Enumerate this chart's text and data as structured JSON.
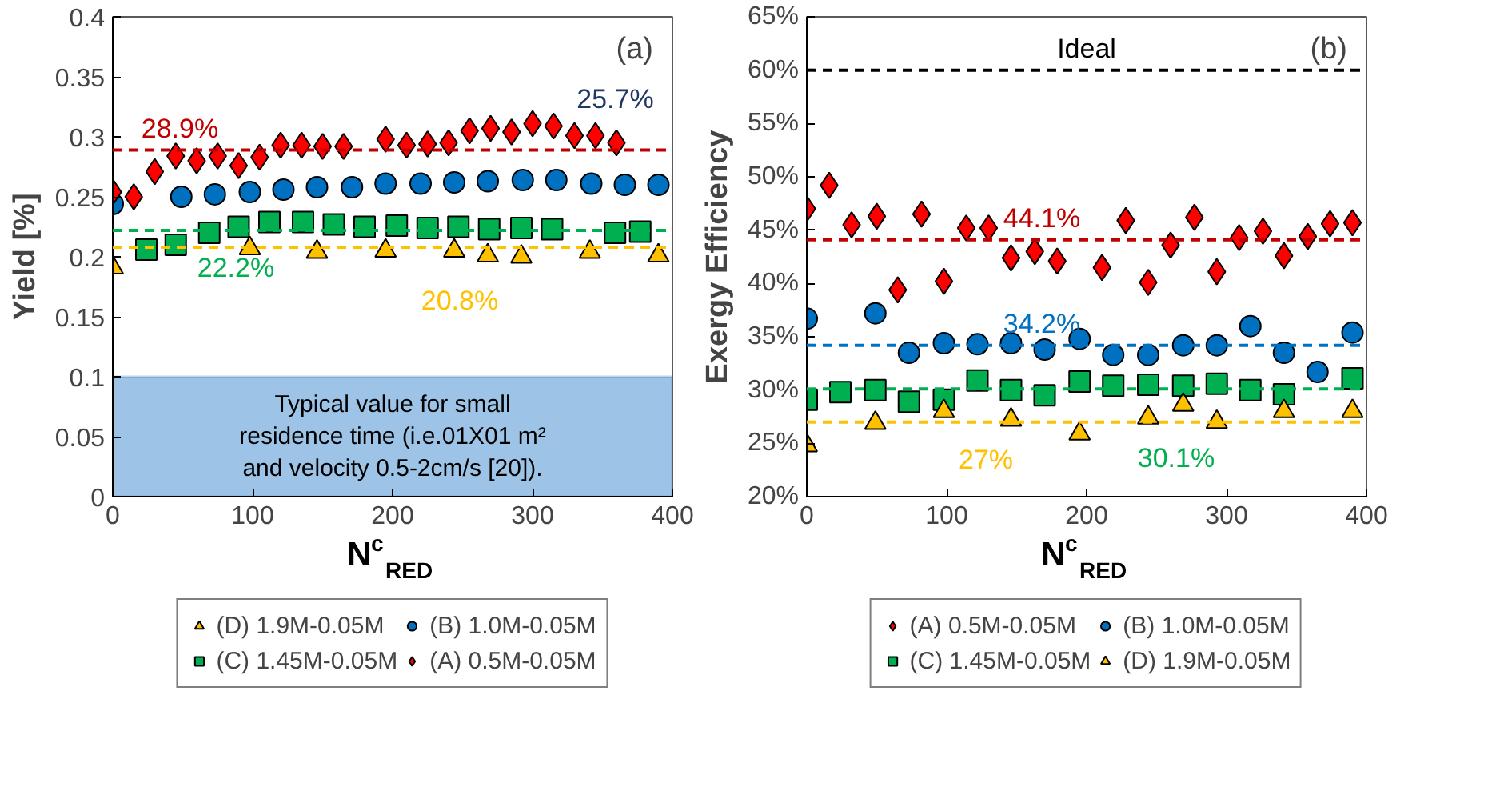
{
  "chart_data": [
    {
      "type": "scatter",
      "ylabel": "Yield [%]",
      "xlabel": "N$^{c}$$_{RED}$",
      "xlim": [
        0,
        400
      ],
      "ylim": [
        0,
        0.4
      ],
      "xticks": [
        0,
        100,
        200,
        300,
        400
      ],
      "yticks": [
        0,
        0.05,
        0.1,
        0.15,
        0.2,
        0.25,
        0.3,
        0.35,
        0.4
      ],
      "grid": false,
      "legend": "bottom",
      "series": [
        {
          "name": "(D) 1.9M-0.05M",
          "color": "#ffc000",
          "marker": "triangle",
          "x": [
            0,
            51,
            98,
            146,
            195,
            244,
            268,
            292,
            341,
            390
          ],
          "values": [
            0.191,
            null,
            0.207,
            0.204,
            0.205,
            0.205,
            0.201,
            0.2,
            0.204,
            0.201
          ]
        },
        {
          "name": "(B) 1.0M-0.05M",
          "color": "#0070c0",
          "marker": "circle",
          "x": [
            0,
            49,
            73,
            98,
            122,
            146,
            171,
            195,
            220,
            244,
            268,
            293,
            317,
            342,
            366,
            390
          ],
          "values": [
            0.244,
            0.25,
            0.252,
            0.254,
            0.256,
            0.258,
            0.258,
            0.261,
            0.261,
            0.262,
            0.263,
            0.264,
            0.264,
            0.261,
            0.26,
            0.26
          ]
        },
        {
          "name": "(C) 1.45M-0.05M",
          "color": "#00b050",
          "marker": "square",
          "x": [
            24,
            45,
            69,
            90,
            112,
            136,
            158,
            180,
            203,
            225,
            247,
            269,
            292,
            314,
            359,
            377
          ],
          "values": [
            0.206,
            0.21,
            0.22,
            0.225,
            0.229,
            0.229,
            0.227,
            0.225,
            0.226,
            0.224,
            0.225,
            0.223,
            0.224,
            0.223,
            0.22,
            0.221
          ]
        },
        {
          "name": "(A) 0.5M-0.05M",
          "color": "#ff0000",
          "marker": "diamond",
          "x": [
            0,
            15,
            30,
            45,
            60,
            75,
            90,
            105,
            120,
            135,
            150,
            165,
            195,
            210,
            225,
            240,
            255,
            270,
            285,
            300,
            315,
            330,
            345,
            360
          ],
          "values": [
            0.254,
            0.25,
            0.271,
            0.284,
            0.28,
            0.284,
            0.276,
            0.283,
            0.293,
            0.293,
            0.292,
            0.292,
            0.298,
            0.293,
            0.294,
            0.295,
            0.305,
            0.307,
            0.304,
            0.311,
            0.309,
            0.301,
            0.301,
            0.295
          ]
        }
      ],
      "ref_lines": [
        {
          "axis": "y",
          "value": 0.289,
          "label": "28.9%",
          "color": "#c00000",
          "line_style": "dashed"
        },
        {
          "axis": "y",
          "value": 0.222,
          "label": "22.2%",
          "color": "#00b050",
          "line_style": "dashed"
        },
        {
          "axis": "y",
          "value": 0.208,
          "label": "20.8%",
          "color": "#ffc000",
          "line_style": "dashed"
        }
      ],
      "bands": [
        {
          "axis": "y",
          "from": 0,
          "to": 0.1,
          "label": "Typical value for small residence time (i.e.01X01 m² and velocity 0.5-2cm/s [20]).",
          "color": "#9dc3e6"
        }
      ],
      "annotations": [
        "(a)",
        {
          "text": "25.7%",
          "x": 366,
          "y": 0.26
        }
      ]
    },
    {
      "type": "scatter",
      "ylabel": "Exergy Efficiency",
      "xlabel": "N$^{c}$$_{RED}$",
      "xlim": [
        0,
        400
      ],
      "ylim": [
        20,
        65
      ],
      "xticks": [
        0,
        100,
        200,
        300,
        400
      ],
      "yticks": [
        {
          "value": 20,
          "label": "20%"
        },
        {
          "value": 25,
          "label": "25%"
        },
        {
          "value": 30,
          "label": "30%"
        },
        {
          "value": 35,
          "label": "35%"
        },
        {
          "value": 40,
          "label": "40%"
        },
        {
          "value": 45,
          "label": "45%"
        },
        {
          "value": 50,
          "label": "50%"
        },
        {
          "value": 55,
          "label": "55%"
        },
        {
          "value": 60,
          "label": "60%"
        },
        {
          "value": 65,
          "label": "65%"
        }
      ],
      "grid": false,
      "legend": "bottom",
      "series": [
        {
          "name": "(A) 0.5M-0.05M",
          "color": "#ff0000",
          "marker": "diamond",
          "x": [
            0,
            16,
            32,
            50,
            65,
            82,
            98,
            114,
            130,
            146,
            163,
            179,
            211,
            228,
            244,
            260,
            277,
            293,
            309,
            326,
            341,
            358,
            374,
            390
          ],
          "values": [
            47.0,
            49.2,
            45.5,
            46.3,
            39.4,
            46.5,
            40.2,
            45.2,
            45.2,
            42.4,
            43.0,
            42.1,
            41.5,
            45.9,
            40.1,
            43.6,
            46.2,
            41.1,
            44.3,
            44.9,
            42.6,
            44.4,
            45.6,
            45.7
          ]
        },
        {
          "name": "(B) 1.0M-0.05M",
          "color": "#0070c0",
          "marker": "circle",
          "x": [
            0,
            49,
            73,
            98,
            122,
            146,
            170,
            195,
            219,
            244,
            269,
            293,
            317,
            341,
            365,
            390
          ],
          "values": [
            36.7,
            37.2,
            33.5,
            34.4,
            34.3,
            34.4,
            33.8,
            34.8,
            33.3,
            33.3,
            34.2,
            34.2,
            36.0,
            33.5,
            31.7,
            35.4
          ]
        },
        {
          "name": "(C) 1.45M-0.05M",
          "color": "#00b050",
          "marker": "square",
          "x": [
            0,
            24,
            49,
            73,
            98,
            122,
            146,
            170,
            195,
            219,
            244,
            269,
            293,
            317,
            341,
            390
          ],
          "values": [
            29.1,
            29.8,
            30.0,
            28.9,
            29.1,
            30.9,
            30.0,
            29.5,
            30.8,
            30.4,
            30.5,
            30.4,
            30.6,
            30.0,
            29.6,
            31.1
          ]
        },
        {
          "name": "(D) 1.9M-0.05M",
          "color": "#ffc000",
          "marker": "triangle",
          "x": [
            0,
            49,
            98,
            146,
            195,
            244,
            269,
            293,
            341,
            390
          ],
          "values": [
            24.8,
            26.9,
            28.0,
            27.2,
            25.9,
            27.4,
            28.6,
            27.0,
            28.0,
            28.0
          ]
        }
      ],
      "ref_lines": [
        {
          "axis": "y",
          "value": 60,
          "label": "Ideal",
          "color": "#000000",
          "line_style": "dashed"
        },
        {
          "axis": "y",
          "value": 44.1,
          "label": "44.1%",
          "color": "#c00000",
          "line_style": "dashed"
        },
        {
          "axis": "y",
          "value": 34.2,
          "label": "34.2%",
          "color": "#0070c0",
          "line_style": "dashed"
        },
        {
          "axis": "y",
          "value": 30.1,
          "label": "30.1%",
          "color": "#00b050",
          "line_style": "dashed"
        },
        {
          "axis": "y",
          "value": 27,
          "label": "27%",
          "color": "#ffc000",
          "line_style": "dashed"
        }
      ],
      "annotations": [
        "(b)"
      ]
    }
  ]
}
